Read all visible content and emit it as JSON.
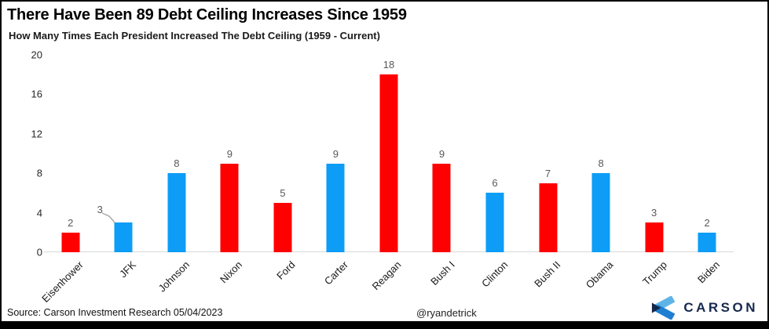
{
  "header": {
    "title": "There Have Been 89 Debt Ceiling Increases Since 1959",
    "subtitle": "How Many Times Each President Increased The Debt Ceiling (1959 - Current)"
  },
  "chart_data": {
    "type": "bar",
    "title": "There Have Been 89 Debt Ceiling Increases Since 1959",
    "subtitle": "How Many Times Each President Increased The Debt Ceiling (1959 - Current)",
    "categories": [
      "Eisenhower",
      "JFK",
      "Johnson",
      "Nixon",
      "Ford",
      "Carter",
      "Reagan",
      "Bush I",
      "Clinton",
      "Bush II",
      "Obama",
      "Trump",
      "Biden"
    ],
    "values": [
      2,
      3,
      8,
      9,
      5,
      9,
      18,
      9,
      6,
      7,
      8,
      3,
      2
    ],
    "bar_colors": [
      "#FF0000",
      "#0D9DF6",
      "#0D9DF6",
      "#FF0000",
      "#FF0000",
      "#0D9DF6",
      "#FF0000",
      "#FF0000",
      "#0D9DF6",
      "#FF0000",
      "#0D9DF6",
      "#FF0000",
      "#0D9DF6"
    ],
    "y_ticks": [
      0,
      4,
      8,
      12,
      16,
      20
    ],
    "ylim": [
      0,
      20
    ],
    "grid": false,
    "legend": "none",
    "data_label_color": "#595959",
    "callout_index": 1
  },
  "footer": {
    "source": "Source: Carson Investment Research 05/04/2023",
    "handle": "@ryandetrick",
    "logo_text": "CARSON"
  },
  "colors": {
    "republican_bar": "#FF0000",
    "democrat_bar": "#0D9DF6",
    "axis_line": "#D9D9D9",
    "leader_line": "#A6A6A6",
    "logo_navy": "#16294E",
    "logo_light_blue": "#5FB4E6",
    "logo_mid_blue": "#1E7FD2"
  }
}
